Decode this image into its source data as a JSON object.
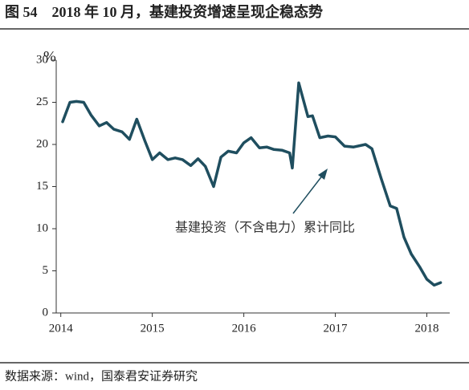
{
  "title": "图 54　2018 年 10 月，基建投资增速呈现企稳态势",
  "source": "数据来源：wind，国泰君安证券研究",
  "chart_data": {
    "type": "line",
    "y_unit": "%",
    "annotation": "基建投资（不含电力）累计同比",
    "color": "#1f4e5f",
    "xlim": [
      2013.95,
      2018.25
    ],
    "xticks": [
      2014,
      2015,
      2016,
      2017,
      2018
    ],
    "ylim": [
      0,
      30
    ],
    "yticks": [
      0,
      5,
      10,
      15,
      20,
      25,
      30
    ],
    "x": [
      2014.02,
      2014.1,
      2014.17,
      2014.25,
      2014.33,
      2014.42,
      2014.5,
      2014.58,
      2014.67,
      2014.75,
      2014.83,
      2014.92,
      2015.0,
      2015.08,
      2015.17,
      2015.25,
      2015.33,
      2015.42,
      2015.5,
      2015.58,
      2015.67,
      2015.75,
      2015.83,
      2015.92,
      2016.0,
      2016.08,
      2016.17,
      2016.25,
      2016.33,
      2016.42,
      2016.5,
      2016.53,
      2016.6,
      2016.7,
      2016.75,
      2016.83,
      2016.92,
      2017.0,
      2017.1,
      2017.2,
      2017.33,
      2017.4,
      2017.5,
      2017.6,
      2017.67,
      2017.75,
      2017.83,
      2017.92,
      2018.0,
      2018.08,
      2018.15
    ],
    "series": [
      {
        "name": "基建投资（不含电力）累计同比",
        "color": "#1f4e5f",
        "values": [
          22.7,
          25.0,
          25.1,
          25.0,
          23.5,
          22.2,
          22.6,
          21.8,
          21.5,
          20.6,
          23.0,
          20.4,
          18.2,
          19.0,
          18.2,
          18.4,
          18.2,
          17.5,
          18.3,
          17.4,
          15.0,
          18.5,
          19.2,
          19.0,
          20.2,
          20.8,
          19.6,
          19.7,
          19.4,
          19.3,
          19.0,
          17.2,
          27.3,
          23.3,
          23.4,
          20.8,
          21.0,
          20.9,
          19.8,
          19.7,
          20.0,
          19.5,
          16.0,
          12.7,
          12.4,
          9.0,
          7.0,
          5.5,
          4.0,
          3.3,
          3.6
        ]
      }
    ]
  }
}
